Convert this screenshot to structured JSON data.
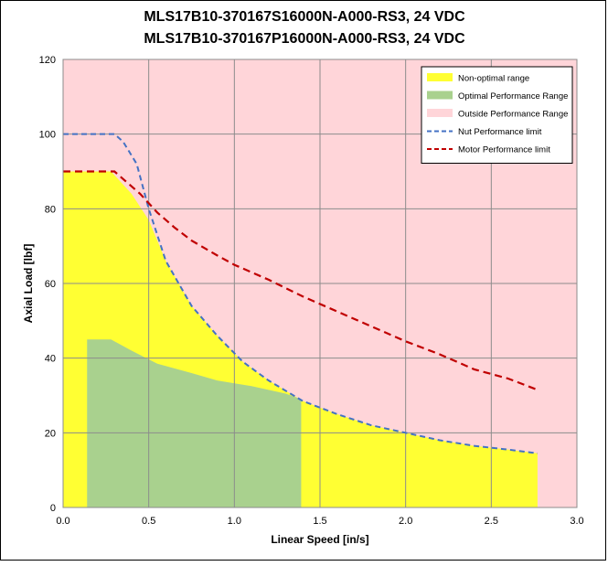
{
  "chart_data": {
    "type": "area",
    "title_lines": [
      "MLS17B10-370167S16000N-A000-RS3, 24 VDC",
      "MLS17B10-370167P16000N-A000-RS3, 24 VDC"
    ],
    "xlabel": "Linear Speed [in/s]",
    "ylabel": "Axial Load [lbf]",
    "xlim": [
      0,
      3.0
    ],
    "ylim": [
      0,
      120
    ],
    "xticks": [
      "0.0",
      "0.5",
      "1.0",
      "1.5",
      "2.0",
      "2.5",
      "3.0"
    ],
    "yticks": [
      "0",
      "20",
      "40",
      "60",
      "80",
      "100",
      "120"
    ],
    "grid": true,
    "legend_position": "top-right",
    "colors": {
      "background": "#FFD5D9",
      "non_optimal": "#FFFF33",
      "optimal": "#A9D18E",
      "nut_limit": "#4472C4",
      "motor_limit": "#C00000",
      "grid": "#8C8C8C"
    },
    "series": [
      {
        "name": "Non-optimal range",
        "kind": "area",
        "x": [
          0,
          0.28,
          0.3,
          0.4,
          0.5,
          0.6,
          0.75,
          0.9,
          1.05,
          1.2,
          1.4,
          1.6,
          1.8,
          2.0,
          2.2,
          2.4,
          2.6,
          2.77
        ],
        "y": [
          90,
          90,
          89,
          84,
          77,
          66,
          54,
          46,
          39,
          34,
          28.5,
          25,
          22,
          20,
          18,
          16.5,
          15.5,
          14.5
        ]
      },
      {
        "name": "Optimal Performance Range",
        "kind": "area",
        "x": [
          0.14,
          0.28,
          0.4,
          0.55,
          0.75,
          0.9,
          1.1,
          1.3,
          1.39
        ],
        "y": [
          45,
          45,
          42,
          38.5,
          36,
          34,
          32.5,
          30.5,
          29
        ]
      },
      {
        "name": "Outside Performance Range",
        "kind": "background"
      },
      {
        "name": "Nut Performance limit",
        "kind": "dashed-line",
        "x": [
          0,
          0.15,
          0.3,
          0.35,
          0.43,
          0.5,
          0.6,
          0.75,
          0.9,
          1.05,
          1.2,
          1.4,
          1.6,
          1.8,
          2.0,
          2.2,
          2.4,
          2.6,
          2.77
        ],
        "y": [
          100,
          100,
          100,
          98,
          92,
          80,
          66,
          54,
          46,
          39,
          34,
          28.5,
          25,
          22,
          20,
          18,
          16.5,
          15.5,
          14.5
        ]
      },
      {
        "name": "Motor Performance limit",
        "kind": "dashed-line",
        "x": [
          0,
          0.15,
          0.3,
          0.45,
          0.55,
          0.65,
          0.75,
          0.9,
          1.0,
          1.2,
          1.4,
          1.6,
          1.8,
          2.0,
          2.2,
          2.4,
          2.6,
          2.77
        ],
        "y": [
          90,
          90,
          90,
          84,
          79,
          75,
          71.5,
          67.5,
          65,
          61,
          56.5,
          52.5,
          48.5,
          44.5,
          41,
          37,
          34.5,
          31.5
        ]
      }
    ]
  }
}
